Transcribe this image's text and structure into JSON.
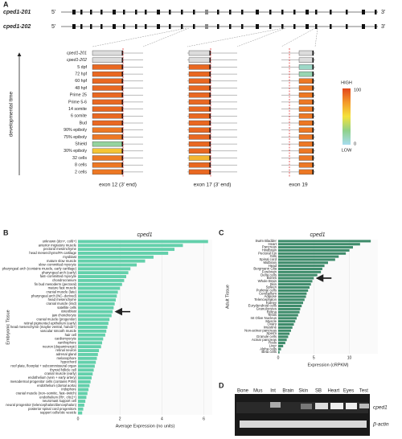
{
  "panel_a": {
    "letter": "A",
    "transcripts": [
      "cped1-201",
      "cped1-202"
    ],
    "five_prime": "5'",
    "three_prime": "3'",
    "axis_label": "developmental time",
    "rows": [
      "cped1-201",
      "cped1-202",
      "5 dpf",
      "72 hpf",
      "60 hpf",
      "48 hpf",
      "Prime 25",
      "Prime 5-6",
      "14 somite",
      "6 somite",
      "Bud",
      "90% epiboly",
      "75% epiboly",
      "Shield",
      "30% epiboly",
      "32 cells",
      "8 cells",
      "2 cells"
    ],
    "exons": [
      {
        "label": "exon 12 (3' end)",
        "values": [
          null,
          null,
          90,
          90,
          90,
          90,
          90,
          90,
          90,
          90,
          90,
          85,
          85,
          20,
          60,
          85,
          85,
          85
        ]
      },
      {
        "label": "exon 17 (3' end)",
        "values": [
          null,
          null,
          90,
          90,
          90,
          90,
          90,
          90,
          90,
          90,
          90,
          90,
          90,
          90,
          90,
          65,
          90,
          90
        ]
      },
      {
        "label": "exon 19",
        "values": [
          null,
          null,
          10,
          15,
          85,
          85,
          85,
          85,
          85,
          85,
          85,
          85,
          85,
          85,
          85,
          85,
          85,
          85
        ]
      }
    ],
    "legend": {
      "high": "HIGH",
      "low": "LOW",
      "max": 100,
      "min": 0
    }
  },
  "chart_data": [
    {
      "type": "bar",
      "letter": "B",
      "title": "cped1",
      "xlabel": "Average Expression (no units)",
      "ylabel": "Embryonic Tissue",
      "color": "#63d0ab",
      "categories": [
        "unknown (dcn+, col6+)",
        "anterior migratory muscle",
        "pectoral mesenchyme",
        "head mesenchyme/PA cartilage",
        "myoblast",
        "mature slow muscle",
        "slow−committed myocyte",
        "pharyngeal arch (contains muscle, early cartilage)",
        "pharyngeal arch (early)",
        "fast−committed myocyte",
        "chondrocranium",
        "fin bud mesoderm (pectoral)",
        "mature fast muscle",
        "cranial muscle (late)",
        "pharyngeal arch (NC−derived)",
        "head mesenchyme",
        "cranial muscle (mid)",
        "satellite cells",
        "osteoblast",
        "jaw chondrocyte",
        "cranial muscle (progenitor)",
        "retinal pigmented epithelium (early)",
        "head mesenchyme (maybe ventral, hand2+)",
        "vascular smooth muscle",
        "hair cell",
        "cardiomyocyte",
        "xanthophore",
        "neuron (dopaminergic)",
        "retinal neuron",
        "adrenal gland",
        "melanophore",
        "hypochord",
        "roof plate, floorplat + subcommissural organ",
        "thyroid follicle cell",
        "cranial muscle (early)",
        "endothelium (vein + early artery)",
        "mesodermal progenitor cells (contains PSM)",
        "endothelium (dorsal aorta)",
        "iridophore",
        "cranial muscle (non−somitic, fast−twitch)",
        "endothelium (lft+, cltc2+)",
        "neuromast support cell",
        "neural progenitor (telencephalon/diencephalon)",
        "posterior spinal cord progenitors",
        "support cells/otic vesicle"
      ],
      "values": [
        6.2,
        5.0,
        4.6,
        4.3,
        3.6,
        3.2,
        2.8,
        2.5,
        2.4,
        2.3,
        2.2,
        2.1,
        2.0,
        1.9,
        1.85,
        1.8,
        1.75,
        1.7,
        1.65,
        1.6,
        1.5,
        1.45,
        1.4,
        1.35,
        1.3,
        1.2,
        1.15,
        1.1,
        1.0,
        0.95,
        0.9,
        0.85,
        0.8,
        0.75,
        0.7,
        0.65,
        0.6,
        0.55,
        0.5,
        0.45,
        0.4,
        0.35,
        0.3,
        0.25,
        0.2
      ],
      "xlim": [
        0,
        6.4
      ],
      "xticks": [
        0,
        2,
        4,
        6
      ],
      "grid": true
    },
    {
      "type": "bar",
      "letter": "C",
      "title": "cped1",
      "xlabel": "Expression (cRPKM)",
      "ylabel": "Adult Tissue",
      "color": "#3e8c6b",
      "categories": [
        "Swim Bladder",
        "Heart",
        "Pancreas",
        "Hindbrain",
        "Pectoral Fin",
        "Gills",
        "Spinal cord",
        "Midbrain",
        "Head",
        "Bergmann Glia",
        "Forebrain",
        "Delta cells",
        "Bones",
        "Whole Brain",
        "Skin",
        "Spleen",
        "Purkinje cells",
        "Cerebellum",
        "Adipose",
        "Telencephalon",
        "Kidney",
        "Eurydendroid cells",
        "Granulocytes",
        "Retina",
        "Testis",
        "Int Olive Nucleus",
        "Muscle",
        "Ovary",
        "Intestine",
        "Non-acinar pancreas",
        "Sperm",
        "Granule cells",
        "Acinar pancreas",
        "Rods",
        "Liver",
        "Alpha cells",
        "Beta cells"
      ],
      "values": [
        13,
        11.5,
        10.5,
        10,
        9.5,
        8.5,
        8,
        7,
        6.5,
        6.2,
        6,
        5.5,
        5,
        4.8,
        4.6,
        4.4,
        4.2,
        4.0,
        3.9,
        3.7,
        3.5,
        3.3,
        3.1,
        3.0,
        2.8,
        2.6,
        2.4,
        2.2,
        2.0,
        1.8,
        1.6,
        1.4,
        1.2,
        1.0,
        0.7,
        0.4,
        0.2
      ],
      "xlim": [
        0,
        14
      ],
      "xticks": [
        0,
        5,
        10
      ],
      "grid": true
    }
  ],
  "panel_d": {
    "letter": "D",
    "lanes": [
      "Bone",
      "Mus",
      "Int",
      "Brain",
      "Skin",
      "SB",
      "Heart",
      "Eyes",
      "Test"
    ],
    "rows": [
      "cped1",
      "β-actin"
    ]
  }
}
